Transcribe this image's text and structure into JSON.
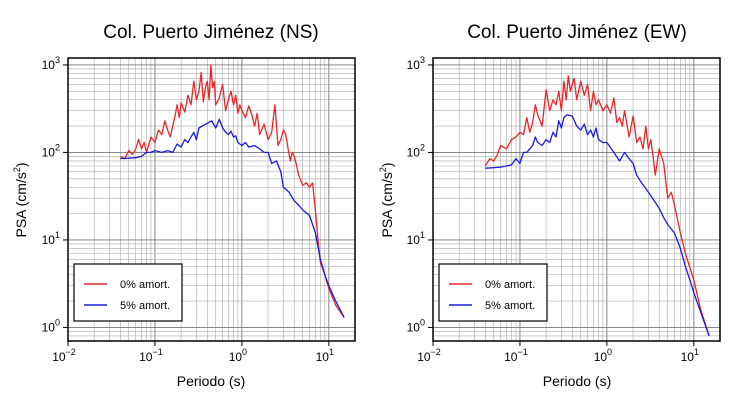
{
  "chart_data": [
    {
      "type": "line",
      "title": "Col. Puerto Jiménez (NS)",
      "xlabel": "Periodo (s)",
      "ylabel_main": "PSA (cm/s",
      "ylabel_sup": "2",
      "ylabel_end": ")",
      "xscale": "log",
      "yscale": "log",
      "xlim": [
        0.01,
        20
      ],
      "ylim": [
        0.7,
        1200
      ],
      "x_ticks": [
        {
          "base": "10",
          "exp": "−2"
        },
        {
          "base": "10",
          "exp": "−1"
        },
        {
          "base": "10",
          "exp": "0"
        },
        {
          "base": "10",
          "exp": "1"
        }
      ],
      "y_ticks": [
        {
          "base": "10",
          "exp": "0"
        },
        {
          "base": "10",
          "exp": "1"
        },
        {
          "base": "10",
          "exp": "2"
        },
        {
          "base": "10",
          "exp": "3"
        }
      ],
      "grid": true,
      "legend_position": "bottom-left",
      "series": [
        {
          "name": "0% amort.",
          "color": "#e8262a",
          "x": [
            0.04,
            0.045,
            0.05,
            0.055,
            0.06,
            0.065,
            0.07,
            0.075,
            0.08,
            0.09,
            0.1,
            0.11,
            0.12,
            0.13,
            0.14,
            0.15,
            0.16,
            0.17,
            0.18,
            0.19,
            0.2,
            0.22,
            0.24,
            0.26,
            0.28,
            0.3,
            0.32,
            0.34,
            0.36,
            0.38,
            0.4,
            0.42,
            0.44,
            0.46,
            0.48,
            0.5,
            0.55,
            0.6,
            0.65,
            0.7,
            0.75,
            0.8,
            0.85,
            0.9,
            0.95,
            1.0,
            1.1,
            1.2,
            1.3,
            1.4,
            1.5,
            1.6,
            1.8,
            2.0,
            2.2,
            2.4,
            2.6,
            2.8,
            3.0,
            3.2,
            3.4,
            3.6,
            3.8,
            4.0,
            4.2,
            4.5,
            5.0,
            5.5,
            6.0,
            6.5,
            7.0,
            7.5,
            8.0,
            9.0,
            10.0,
            12.0,
            15.0
          ],
          "y": [
            90,
            85,
            105,
            95,
            110,
            140,
            110,
            130,
            100,
            150,
            130,
            180,
            160,
            230,
            180,
            150,
            200,
            260,
            350,
            250,
            370,
            290,
            450,
            350,
            650,
            400,
            500,
            820,
            380,
            550,
            650,
            400,
            1000,
            550,
            650,
            350,
            420,
            600,
            300,
            400,
            500,
            350,
            450,
            280,
            350,
            300,
            250,
            340,
            270,
            200,
            280,
            160,
            210,
            140,
            170,
            350,
            120,
            140,
            180,
            160,
            110,
            80,
            100,
            90,
            75,
            55,
            42,
            45,
            40,
            45,
            22,
            10,
            5.5,
            4,
            2.8,
            1.8,
            1.3
          ]
        },
        {
          "name": "5% amort.",
          "color": "#1a1adb",
          "x": [
            0.04,
            0.05,
            0.06,
            0.07,
            0.08,
            0.09,
            0.1,
            0.12,
            0.14,
            0.16,
            0.18,
            0.2,
            0.22,
            0.24,
            0.26,
            0.28,
            0.3,
            0.32,
            0.35,
            0.4,
            0.45,
            0.5,
            0.55,
            0.6,
            0.65,
            0.7,
            0.75,
            0.8,
            0.85,
            0.9,
            1.0,
            1.1,
            1.2,
            1.4,
            1.6,
            1.8,
            2.0,
            2.2,
            2.5,
            2.8,
            3.0,
            3.5,
            4.0,
            4.5,
            5.0,
            6.0,
            7.0,
            8.0,
            9.0,
            10.0,
            12.0,
            15.0
          ],
          "y": [
            85,
            86,
            87,
            90,
            100,
            100,
            105,
            100,
            105,
            100,
            125,
            115,
            140,
            130,
            150,
            170,
            140,
            190,
            200,
            215,
            230,
            190,
            240,
            190,
            170,
            160,
            175,
            150,
            155,
            130,
            120,
            130,
            115,
            120,
            110,
            100,
            100,
            75,
            80,
            60,
            40,
            35,
            28,
            25,
            22,
            19,
            12,
            6,
            4,
            3,
            2,
            1.3
          ]
        }
      ]
    },
    {
      "type": "line",
      "title": "Col. Puerto Jiménez (EW)",
      "xlabel": "Periodo (s)",
      "ylabel_main": "PSA (cm/s",
      "ylabel_sup": "2",
      "ylabel_end": ")",
      "xscale": "log",
      "yscale": "log",
      "xlim": [
        0.01,
        20
      ],
      "ylim": [
        0.7,
        1200
      ],
      "x_ticks": [
        {
          "base": "10",
          "exp": "−2"
        },
        {
          "base": "10",
          "exp": "−1"
        },
        {
          "base": "10",
          "exp": "0"
        },
        {
          "base": "10",
          "exp": "1"
        }
      ],
      "y_ticks": [
        {
          "base": "10",
          "exp": "0"
        },
        {
          "base": "10",
          "exp": "1"
        },
        {
          "base": "10",
          "exp": "2"
        },
        {
          "base": "10",
          "exp": "3"
        }
      ],
      "grid": true,
      "legend_position": "bottom-left",
      "series": [
        {
          "name": "0% amort.",
          "color": "#e8262a",
          "x": [
            0.04,
            0.045,
            0.05,
            0.055,
            0.06,
            0.07,
            0.08,
            0.09,
            0.1,
            0.11,
            0.12,
            0.13,
            0.14,
            0.15,
            0.16,
            0.18,
            0.2,
            0.22,
            0.24,
            0.26,
            0.28,
            0.3,
            0.32,
            0.34,
            0.36,
            0.38,
            0.4,
            0.42,
            0.45,
            0.5,
            0.55,
            0.6,
            0.65,
            0.7,
            0.75,
            0.8,
            0.9,
            1.0,
            1.1,
            1.2,
            1.3,
            1.4,
            1.5,
            1.6,
            1.8,
            2.0,
            2.2,
            2.4,
            2.6,
            2.8,
            3.0,
            3.2,
            3.4,
            3.6,
            4.0,
            4.5,
            5.0,
            5.5,
            6.0,
            7.0,
            8.0,
            10.0,
            12.0,
            15.0
          ],
          "y": [
            70,
            85,
            80,
            95,
            120,
            110,
            140,
            150,
            170,
            160,
            250,
            170,
            220,
            350,
            270,
            200,
            520,
            300,
            400,
            350,
            500,
            300,
            650,
            400,
            750,
            500,
            600,
            700,
            400,
            650,
            450,
            600,
            300,
            500,
            350,
            400,
            300,
            350,
            280,
            420,
            220,
            250,
            200,
            300,
            150,
            260,
            130,
            150,
            110,
            200,
            110,
            140,
            90,
            55,
            110,
            75,
            30,
            35,
            25,
            12,
            7,
            3.5,
            1.6,
            0.8
          ]
        },
        {
          "name": "5% amort.",
          "color": "#1a1adb",
          "x": [
            0.04,
            0.05,
            0.06,
            0.07,
            0.08,
            0.09,
            0.1,
            0.11,
            0.12,
            0.13,
            0.14,
            0.15,
            0.16,
            0.18,
            0.2,
            0.22,
            0.24,
            0.26,
            0.28,
            0.3,
            0.32,
            0.35,
            0.4,
            0.45,
            0.5,
            0.55,
            0.6,
            0.65,
            0.7,
            0.75,
            0.8,
            0.9,
            1.0,
            1.2,
            1.4,
            1.6,
            1.8,
            2.0,
            2.2,
            2.5,
            3.0,
            3.5,
            4.0,
            4.5,
            5.0,
            6.0,
            7.0,
            8.0,
            9.0,
            10.0,
            12.0,
            15.0
          ],
          "y": [
            66,
            67,
            68,
            70,
            72,
            85,
            75,
            100,
            100,
            110,
            120,
            150,
            130,
            120,
            140,
            130,
            170,
            150,
            230,
            190,
            250,
            270,
            260,
            200,
            180,
            210,
            160,
            180,
            150,
            190,
            140,
            130,
            130,
            100,
            80,
            100,
            85,
            75,
            55,
            45,
            35,
            28,
            23,
            18,
            15,
            12,
            8,
            5,
            3.5,
            2.5,
            1.5,
            0.8
          ]
        }
      ]
    }
  ]
}
